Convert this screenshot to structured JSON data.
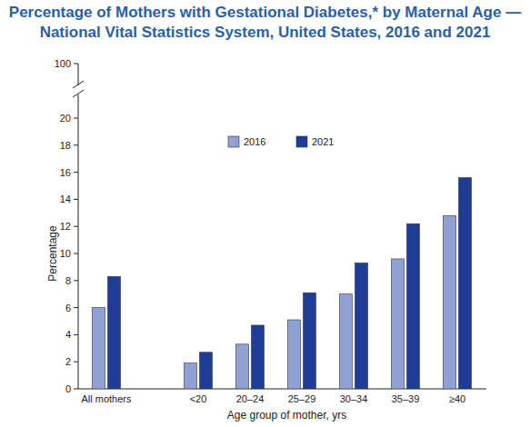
{
  "chart_data": {
    "type": "bar",
    "title": "Percentage of Mothers with Gestational Diabetes,* by Maternal Age — National Vital Statistics System, United States, 2016 and 2021",
    "x_label": "Age group of mother, yrs",
    "y_label": "Percentage",
    "categories": [
      "All mothers",
      "<20",
      "20–24",
      "25–29",
      "30–34",
      "35–39",
      "≥40"
    ],
    "series": [
      {
        "name": "2016",
        "color": "#8fa2d6",
        "values": [
          6.0,
          1.9,
          3.3,
          5.1,
          7.0,
          9.6,
          12.8
        ]
      },
      {
        "name": "2021",
        "color": "#1e3d96",
        "values": [
          8.3,
          2.7,
          4.7,
          7.1,
          9.3,
          12.2,
          15.6
        ]
      }
    ],
    "ylim": [
      0,
      100
    ],
    "yticks": [
      0,
      2,
      4,
      6,
      8,
      10,
      12,
      14,
      16,
      18,
      20,
      100
    ],
    "grid": false,
    "legend": "top"
  }
}
